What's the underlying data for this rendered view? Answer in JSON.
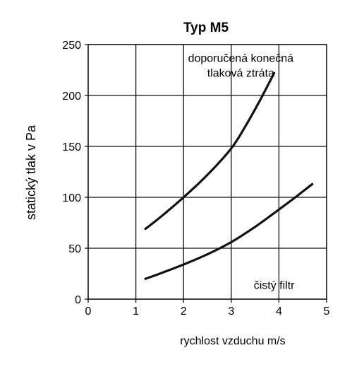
{
  "chart_data": {
    "type": "line",
    "title": "Typ M5",
    "xlabel": "rychlost vzduchu m/s",
    "ylabel": "statický tlak v Pa",
    "xlim": [
      0,
      5
    ],
    "ylim": [
      0,
      250
    ],
    "xticks": [
      0,
      1,
      2,
      3,
      4,
      5
    ],
    "yticks": [
      0,
      50,
      100,
      150,
      200,
      250
    ],
    "xtick_labels": [
      "0",
      "1",
      "2",
      "3",
      "4",
      "5"
    ],
    "ytick_labels": [
      "0",
      "50",
      "100",
      "150",
      "200",
      "250"
    ],
    "grid": true,
    "line_color": "#111111",
    "annotations": [
      {
        "lines": [
          "doporučená konečná",
          "tlaková ztráta"
        ],
        "x": 3.2,
        "y": 233
      },
      {
        "lines": [
          "čistý filtr"
        ],
        "x": 3.9,
        "y": 10
      }
    ],
    "series": [
      {
        "x": [
          1.2,
          1.5,
          2.0,
          2.5,
          3.0,
          3.3,
          3.6,
          3.9
        ],
        "y": [
          69,
          80,
          100,
          122,
          148,
          170,
          195,
          222
        ]
      },
      {
        "x": [
          1.2,
          1.5,
          2.0,
          2.5,
          3.0,
          3.5,
          4.0,
          4.4,
          4.7
        ],
        "y": [
          20,
          25,
          34,
          44,
          56,
          71,
          88,
          102,
          113
        ]
      }
    ]
  }
}
